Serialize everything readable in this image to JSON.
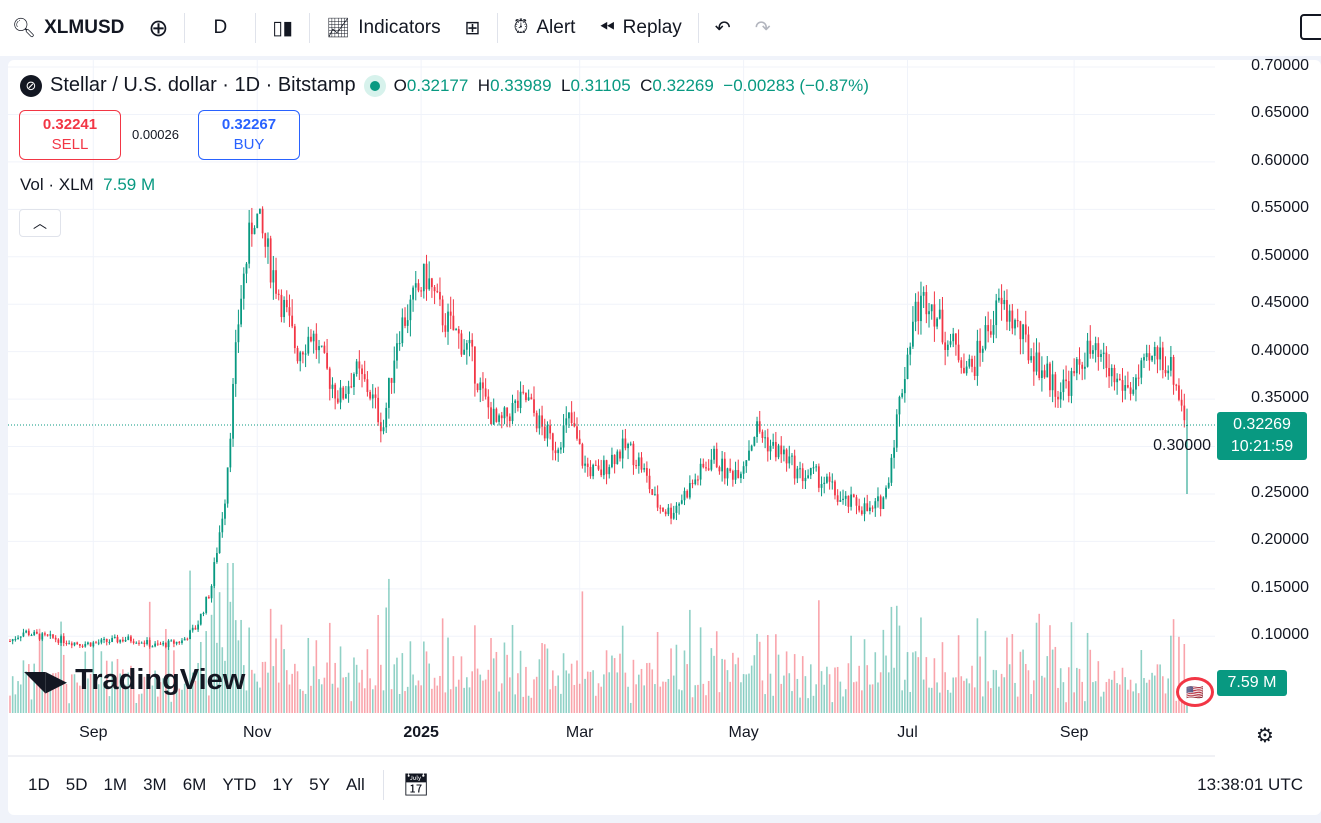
{
  "toolbar": {
    "symbol": "XLMUSD",
    "interval": "D",
    "indicators": "Indicators",
    "alert": "Alert",
    "replay": "Replay"
  },
  "legend": {
    "title": "Stellar / U.S. dollar · 1D · Bitstamp",
    "o_label": "O",
    "o": "0.32177",
    "h_label": "H",
    "h": "0.33989",
    "l_label": "L",
    "l": "0.31105",
    "c_label": "C",
    "c": "0.32269",
    "change": "−0.00283 (−0.87%)"
  },
  "trade": {
    "sell_price": "0.32241",
    "sell_label": "SELL",
    "spread": "0.00026",
    "buy_price": "0.32267",
    "buy_label": "BUY"
  },
  "volume_legend": {
    "label": "Vol · XLM",
    "value": "7.59 M"
  },
  "price_tag": {
    "price": "0.32269",
    "countdown": "10:21:59"
  },
  "volume_tag": "7.59 M",
  "watermark": "TradingView",
  "ranges": [
    "1D",
    "5D",
    "1M",
    "3M",
    "6M",
    "YTD",
    "1Y",
    "5Y",
    "All"
  ],
  "clock": "13:38:01 UTC",
  "colors": {
    "up": "#089981",
    "down": "#f23645",
    "accent": "#2962ff"
  },
  "chart_data": {
    "type": "candlestick",
    "title": "Stellar / U.S. dollar · 1D · Bitstamp",
    "y_ticks": [
      "0.70000",
      "0.65000",
      "0.60000",
      "0.55000",
      "0.50000",
      "0.45000",
      "0.40000",
      "0.35000",
      "0.30000",
      "0.25000",
      "0.20000",
      "0.15000",
      "0.10000"
    ],
    "ylim": [
      0.05,
      0.7
    ],
    "x_ticks": [
      "Sep",
      "Nov",
      "2025",
      "Mar",
      "May",
      "Jul",
      "Sep"
    ],
    "x_tick_index": [
      31,
      92,
      153,
      212,
      273,
      334,
      396
    ],
    "days": 439,
    "weekly_closes": [
      0.095,
      0.105,
      0.1,
      0.098,
      0.095,
      0.092,
      0.093,
      0.095,
      0.097,
      0.096,
      0.09,
      0.092,
      0.095,
      0.11,
      0.15,
      0.25,
      0.45,
      0.55,
      0.5,
      0.45,
      0.4,
      0.42,
      0.38,
      0.35,
      0.38,
      0.36,
      0.32,
      0.42,
      0.45,
      0.48,
      0.44,
      0.42,
      0.4,
      0.35,
      0.32,
      0.34,
      0.35,
      0.32,
      0.3,
      0.33,
      0.28,
      0.27,
      0.29,
      0.3,
      0.28,
      0.24,
      0.23,
      0.25,
      0.27,
      0.29,
      0.27,
      0.28,
      0.32,
      0.3,
      0.29,
      0.27,
      0.27,
      0.26,
      0.24,
      0.24,
      0.23,
      0.25,
      0.35,
      0.44,
      0.46,
      0.42,
      0.4,
      0.38,
      0.42,
      0.45,
      0.43,
      0.4,
      0.38,
      0.36,
      0.37,
      0.4,
      0.39,
      0.37,
      0.36,
      0.38,
      0.4,
      0.38,
      0.32269
    ],
    "last_volume": "7.59 M"
  }
}
